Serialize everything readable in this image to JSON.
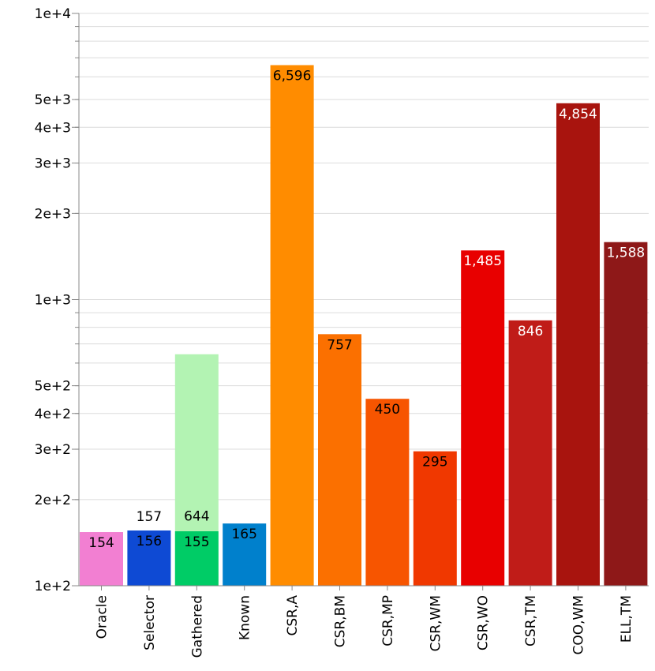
{
  "chart_data": {
    "type": "bar",
    "yscale": "log",
    "ylim": [
      100,
      10000
    ],
    "grid": true,
    "legend": "none",
    "yticks": [
      {
        "value": 100,
        "label": "1e+2"
      },
      {
        "value": 200,
        "label": "2e+2"
      },
      {
        "value": 300,
        "label": "3e+2"
      },
      {
        "value": 400,
        "label": "4e+2"
      },
      {
        "value": 500,
        "label": "5e+2"
      },
      {
        "value": 1000,
        "label": "1e+3"
      },
      {
        "value": 2000,
        "label": "2e+3"
      },
      {
        "value": 3000,
        "label": "3e+3"
      },
      {
        "value": 4000,
        "label": "4e+3"
      },
      {
        "value": 5000,
        "label": "5e+3"
      },
      {
        "value": 10000,
        "label": "1e+4"
      }
    ],
    "minor_gridlines": [
      600,
      700,
      800,
      900,
      6000,
      7000,
      8000,
      9000
    ],
    "categories": [
      "Oracle",
      "Selector",
      "Gathered",
      "Known",
      "CSR,A",
      "CSR,BM",
      "CSR,MP",
      "CSR,WM",
      "CSR,WO",
      "CSR,TM",
      "COO,WM",
      "ELL,TM"
    ],
    "bars": [
      {
        "category": "Oracle",
        "value": 154,
        "label": "154",
        "color": "#f27fd2",
        "label_color": "#000000"
      },
      {
        "category": "Selector",
        "value": 157,
        "label": "157",
        "color": "#ffffff",
        "label_color": "#000000",
        "outside": true
      },
      {
        "category": "Selector",
        "value": 156,
        "label": "156",
        "color": "#0e4ad4",
        "label_color": "#000000"
      },
      {
        "category": "Gathered",
        "value": 644,
        "label": "644",
        "color": "#b3f3b3",
        "label_color": "#000000",
        "label_at_value": 170
      },
      {
        "category": "Gathered",
        "value": 155,
        "label": "155",
        "color": "#00cc66",
        "label_color": "#000000"
      },
      {
        "category": "Known",
        "value": 165,
        "label": "165",
        "color": "#0080cc",
        "label_color": "#000000"
      },
      {
        "category": "CSR,A",
        "value": 6596,
        "label": "6,596",
        "color": "#ff8c00",
        "label_color": "#000000"
      },
      {
        "category": "CSR,BM",
        "value": 757,
        "label": "757",
        "color": "#fb7000",
        "label_color": "#000000"
      },
      {
        "category": "CSR,MP",
        "value": 450,
        "label": "450",
        "color": "#f75500",
        "label_color": "#000000"
      },
      {
        "category": "CSR,WM",
        "value": 295,
        "label": "295",
        "color": "#f03800",
        "label_color": "#000000"
      },
      {
        "category": "CSR,WO",
        "value": 1485,
        "label": "1,485",
        "color": "#e80000",
        "label_color": "#ffffff"
      },
      {
        "category": "CSR,TM",
        "value": 846,
        "label": "846",
        "color": "#c01c18",
        "label_color": "#ffffff"
      },
      {
        "category": "COO,WM",
        "value": 4854,
        "label": "4,854",
        "color": "#a8140e",
        "label_color": "#ffffff"
      },
      {
        "category": "ELL,TM",
        "value": 1588,
        "label": "1,588",
        "color": "#8e1818",
        "label_color": "#ffffff"
      }
    ],
    "title": "",
    "xlabel": "",
    "ylabel": ""
  }
}
